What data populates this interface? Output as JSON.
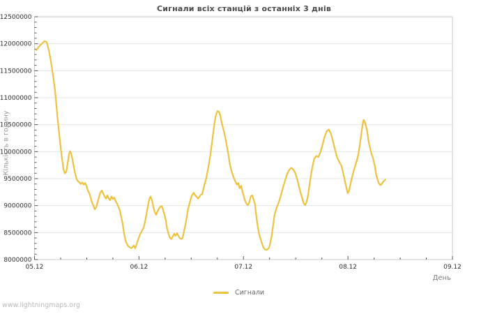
{
  "page": {
    "watermark": "www.lightningmaps.org"
  },
  "chart": {
    "title": "Сигнали всіх станцій з останніх 3 днів",
    "x_axis_title": "День",
    "y_axis_title": "Кількість в годину",
    "legend": [
      {
        "label": "Сигнали",
        "color": "#edc240"
      }
    ]
  },
  "chart_data": {
    "type": "line",
    "title": "Сигнали всіх станцій з останніх 3 днів",
    "xlabel": "День",
    "ylabel": "Кількість в годину",
    "x_tick_labels": [
      "05.12",
      "06.12",
      "07.12",
      "08.12",
      "09.12"
    ],
    "x_range_days": [
      0,
      4
    ],
    "x_minor_step_days": 0.25,
    "ylim": [
      8000000,
      12500000
    ],
    "y_tick_step": 500000,
    "y_minor_step": 100000,
    "y_tick_labels": [
      "8000000",
      "8500000",
      "9000000",
      "9500000",
      "10000000",
      "10500000",
      "11000000",
      "11500000",
      "12000000",
      "12500000"
    ],
    "grid": "horizontal-only",
    "legend_position": "bottom-center",
    "frame_color": "#c8c8c8",
    "grid_color": "#e6e6e6",
    "tick_color": "#555555",
    "tick_label_color": "#2e2e2e",
    "series": [
      {
        "name": "Сигнали",
        "color": "#edc240",
        "points": [
          [
            0.017,
            11880000
          ],
          [
            0.037,
            11930000
          ],
          [
            0.057,
            11980000
          ],
          [
            0.077,
            12010000
          ],
          [
            0.097,
            12050000
          ],
          [
            0.117,
            12030000
          ],
          [
            0.137,
            11880000
          ],
          [
            0.157,
            11680000
          ],
          [
            0.177,
            11420000
          ],
          [
            0.197,
            11130000
          ],
          [
            0.217,
            10700000
          ],
          [
            0.237,
            10310000
          ],
          [
            0.257,
            9970000
          ],
          [
            0.277,
            9680000
          ],
          [
            0.29,
            9600000
          ],
          [
            0.304,
            9630000
          ],
          [
            0.317,
            9780000
          ],
          [
            0.33,
            9950000
          ],
          [
            0.34,
            10010000
          ],
          [
            0.35,
            9970000
          ],
          [
            0.364,
            9840000
          ],
          [
            0.377,
            9710000
          ],
          [
            0.39,
            9580000
          ],
          [
            0.404,
            9490000
          ],
          [
            0.417,
            9450000
          ],
          [
            0.43,
            9430000
          ],
          [
            0.444,
            9400000
          ],
          [
            0.457,
            9430000
          ],
          [
            0.47,
            9390000
          ],
          [
            0.484,
            9420000
          ],
          [
            0.497,
            9370000
          ],
          [
            0.51,
            9280000
          ],
          [
            0.524,
            9230000
          ],
          [
            0.537,
            9150000
          ],
          [
            0.55,
            9060000
          ],
          [
            0.564,
            9000000
          ],
          [
            0.577,
            8930000
          ],
          [
            0.59,
            8970000
          ],
          [
            0.604,
            9060000
          ],
          [
            0.617,
            9160000
          ],
          [
            0.63,
            9240000
          ],
          [
            0.644,
            9280000
          ],
          [
            0.657,
            9230000
          ],
          [
            0.67,
            9170000
          ],
          [
            0.684,
            9130000
          ],
          [
            0.697,
            9190000
          ],
          [
            0.71,
            9130000
          ],
          [
            0.724,
            9100000
          ],
          [
            0.737,
            9170000
          ],
          [
            0.75,
            9120000
          ],
          [
            0.764,
            9150000
          ],
          [
            0.777,
            9080000
          ],
          [
            0.79,
            9040000
          ],
          [
            0.804,
            8970000
          ],
          [
            0.817,
            8910000
          ],
          [
            0.83,
            8790000
          ],
          [
            0.844,
            8660000
          ],
          [
            0.857,
            8490000
          ],
          [
            0.87,
            8360000
          ],
          [
            0.884,
            8290000
          ],
          [
            0.897,
            8250000
          ],
          [
            0.91,
            8230000
          ],
          [
            0.924,
            8210000
          ],
          [
            0.937,
            8230000
          ],
          [
            0.95,
            8260000
          ],
          [
            0.964,
            8210000
          ],
          [
            0.977,
            8280000
          ],
          [
            0.99,
            8360000
          ],
          [
            1.004,
            8440000
          ],
          [
            1.017,
            8490000
          ],
          [
            1.03,
            8540000
          ],
          [
            1.044,
            8590000
          ],
          [
            1.057,
            8690000
          ],
          [
            1.07,
            8830000
          ],
          [
            1.084,
            8980000
          ],
          [
            1.097,
            9110000
          ],
          [
            1.11,
            9170000
          ],
          [
            1.124,
            9100000
          ],
          [
            1.137,
            8980000
          ],
          [
            1.15,
            8880000
          ],
          [
            1.164,
            8830000
          ],
          [
            1.177,
            8890000
          ],
          [
            1.19,
            8940000
          ],
          [
            1.204,
            8980000
          ],
          [
            1.217,
            8990000
          ],
          [
            1.23,
            8930000
          ],
          [
            1.244,
            8830000
          ],
          [
            1.257,
            8720000
          ],
          [
            1.27,
            8570000
          ],
          [
            1.284,
            8470000
          ],
          [
            1.297,
            8400000
          ],
          [
            1.31,
            8380000
          ],
          [
            1.324,
            8430000
          ],
          [
            1.337,
            8480000
          ],
          [
            1.35,
            8440000
          ],
          [
            1.364,
            8490000
          ],
          [
            1.377,
            8440000
          ],
          [
            1.39,
            8400000
          ],
          [
            1.404,
            8380000
          ],
          [
            1.417,
            8400000
          ],
          [
            1.43,
            8510000
          ],
          [
            1.444,
            8640000
          ],
          [
            1.457,
            8790000
          ],
          [
            1.47,
            8940000
          ],
          [
            1.484,
            9040000
          ],
          [
            1.497,
            9140000
          ],
          [
            1.51,
            9200000
          ],
          [
            1.524,
            9240000
          ],
          [
            1.537,
            9190000
          ],
          [
            1.55,
            9170000
          ],
          [
            1.564,
            9130000
          ],
          [
            1.577,
            9160000
          ],
          [
            1.59,
            9200000
          ],
          [
            1.604,
            9210000
          ],
          [
            1.617,
            9310000
          ],
          [
            1.63,
            9410000
          ],
          [
            1.644,
            9510000
          ],
          [
            1.657,
            9640000
          ],
          [
            1.67,
            9780000
          ],
          [
            1.684,
            9950000
          ],
          [
            1.697,
            10140000
          ],
          [
            1.71,
            10340000
          ],
          [
            1.724,
            10550000
          ],
          [
            1.737,
            10680000
          ],
          [
            1.75,
            10750000
          ],
          [
            1.764,
            10740000
          ],
          [
            1.777,
            10680000
          ],
          [
            1.79,
            10550000
          ],
          [
            1.804,
            10440000
          ],
          [
            1.817,
            10350000
          ],
          [
            1.83,
            10220000
          ],
          [
            1.844,
            10070000
          ],
          [
            1.857,
            9930000
          ],
          [
            1.87,
            9760000
          ],
          [
            1.884,
            9650000
          ],
          [
            1.897,
            9570000
          ],
          [
            1.91,
            9500000
          ],
          [
            1.924,
            9440000
          ],
          [
            1.937,
            9390000
          ],
          [
            1.95,
            9420000
          ],
          [
            1.964,
            9320000
          ],
          [
            1.977,
            9370000
          ],
          [
            1.99,
            9260000
          ],
          [
            2.004,
            9170000
          ],
          [
            2.017,
            9080000
          ],
          [
            2.03,
            9030000
          ],
          [
            2.044,
            9010000
          ],
          [
            2.057,
            9070000
          ],
          [
            2.07,
            9170000
          ],
          [
            2.084,
            9190000
          ],
          [
            2.097,
            9110000
          ],
          [
            2.11,
            9030000
          ],
          [
            2.124,
            8790000
          ],
          [
            2.137,
            8610000
          ],
          [
            2.15,
            8470000
          ],
          [
            2.164,
            8380000
          ],
          [
            2.177,
            8300000
          ],
          [
            2.19,
            8230000
          ],
          [
            2.204,
            8190000
          ],
          [
            2.217,
            8180000
          ],
          [
            2.23,
            8190000
          ],
          [
            2.244,
            8220000
          ],
          [
            2.257,
            8310000
          ],
          [
            2.27,
            8440000
          ],
          [
            2.284,
            8630000
          ],
          [
            2.297,
            8830000
          ],
          [
            2.317,
            8960000
          ],
          [
            2.337,
            9060000
          ],
          [
            2.357,
            9180000
          ],
          [
            2.377,
            9330000
          ],
          [
            2.397,
            9460000
          ],
          [
            2.417,
            9580000
          ],
          [
            2.437,
            9660000
          ],
          [
            2.457,
            9700000
          ],
          [
            2.477,
            9670000
          ],
          [
            2.497,
            9600000
          ],
          [
            2.517,
            9470000
          ],
          [
            2.537,
            9310000
          ],
          [
            2.557,
            9170000
          ],
          [
            2.577,
            9040000
          ],
          [
            2.59,
            9010000
          ],
          [
            2.604,
            9070000
          ],
          [
            2.617,
            9180000
          ],
          [
            2.637,
            9450000
          ],
          [
            2.657,
            9690000
          ],
          [
            2.677,
            9870000
          ],
          [
            2.697,
            9920000
          ],
          [
            2.717,
            9900000
          ],
          [
            2.737,
            9990000
          ],
          [
            2.757,
            10130000
          ],
          [
            2.777,
            10280000
          ],
          [
            2.797,
            10380000
          ],
          [
            2.817,
            10410000
          ],
          [
            2.837,
            10330000
          ],
          [
            2.857,
            10190000
          ],
          [
            2.877,
            10030000
          ],
          [
            2.897,
            9890000
          ],
          [
            2.917,
            9810000
          ],
          [
            2.937,
            9740000
          ],
          [
            2.957,
            9580000
          ],
          [
            2.977,
            9400000
          ],
          [
            2.997,
            9230000
          ],
          [
            3.01,
            9270000
          ],
          [
            3.03,
            9450000
          ],
          [
            3.05,
            9610000
          ],
          [
            3.07,
            9740000
          ],
          [
            3.084,
            9830000
          ],
          [
            3.097,
            9930000
          ],
          [
            3.117,
            10170000
          ],
          [
            3.137,
            10470000
          ],
          [
            3.15,
            10590000
          ],
          [
            3.164,
            10540000
          ],
          [
            3.184,
            10380000
          ],
          [
            3.197,
            10190000
          ],
          [
            3.21,
            10080000
          ],
          [
            3.224,
            9970000
          ],
          [
            3.237,
            9900000
          ],
          [
            3.257,
            9740000
          ],
          [
            3.27,
            9570000
          ],
          [
            3.284,
            9480000
          ],
          [
            3.297,
            9410000
          ],
          [
            3.31,
            9380000
          ],
          [
            3.324,
            9400000
          ],
          [
            3.337,
            9440000
          ],
          [
            3.357,
            9480000
          ]
        ]
      }
    ]
  }
}
